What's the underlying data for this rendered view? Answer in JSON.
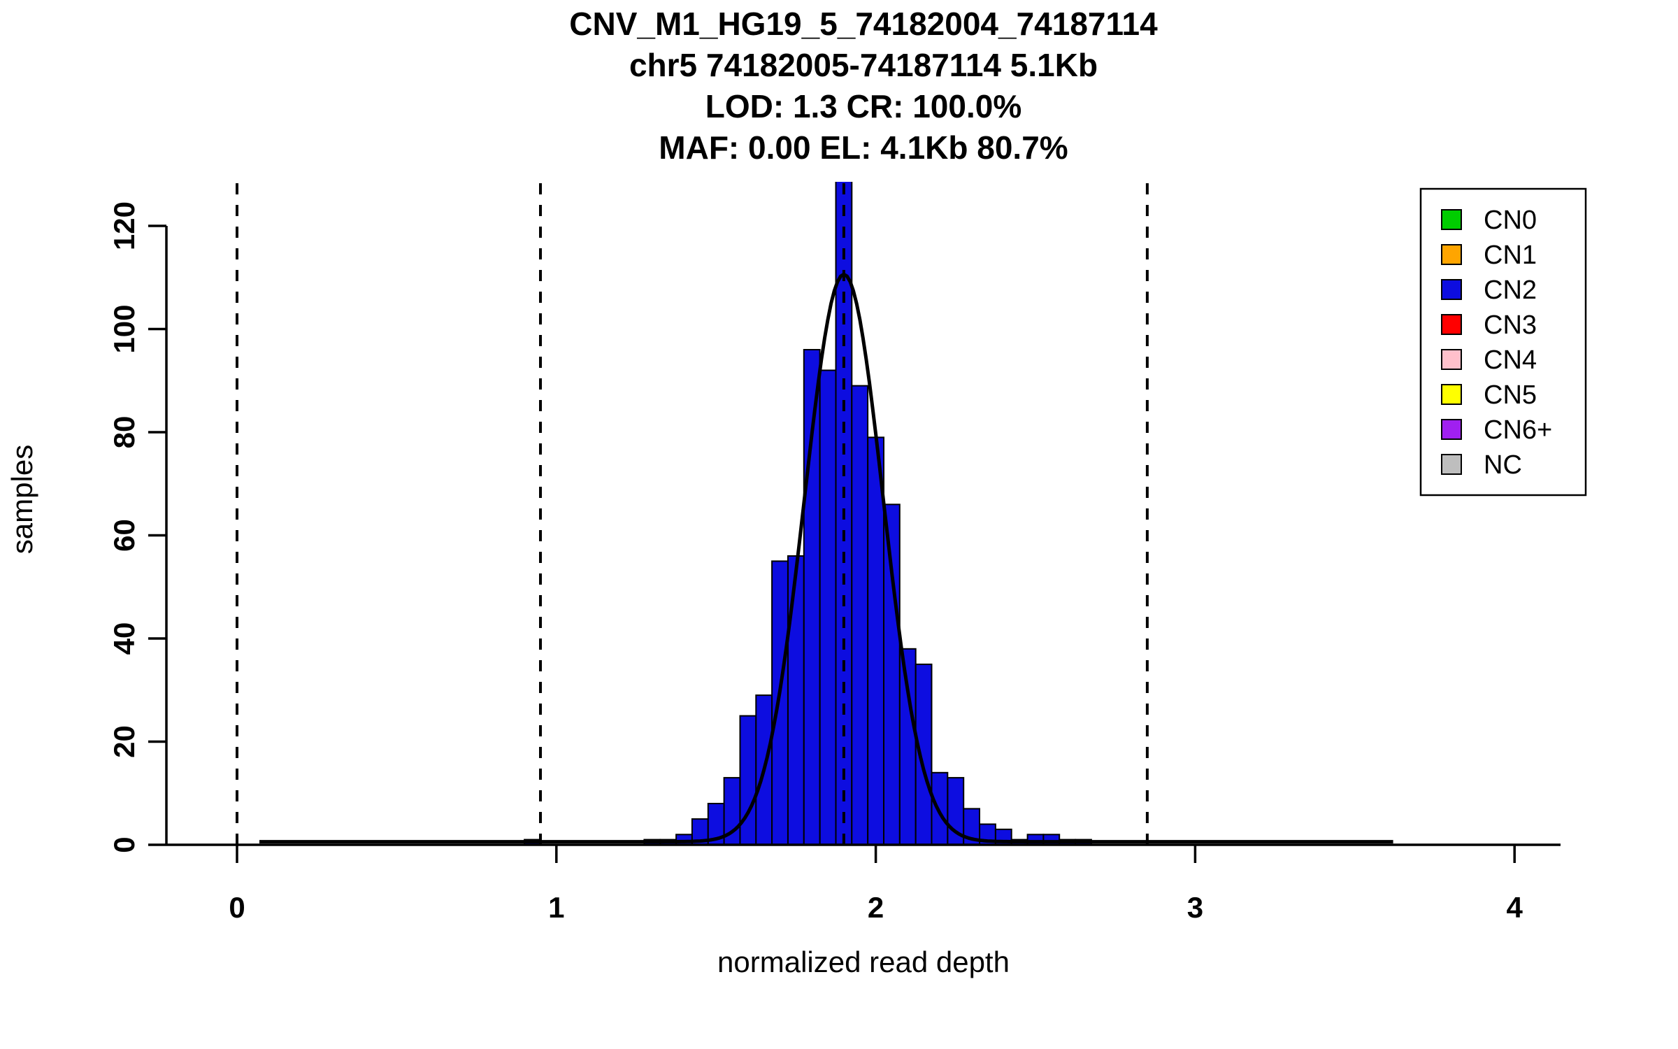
{
  "figure": {
    "background": "#FFFFFF"
  },
  "chart_data": {
    "type": "bar",
    "chart_kind": "histogram-with-density-curve",
    "title_lines": [
      "CNV_M1_HG19_5_74182004_74187114",
      "chr5 74182005-74187114 5.1Kb",
      "LOD: 1.3 CR: 100.0%",
      "MAF: 0.00 EL: 4.1Kb 80.7%"
    ],
    "xlabel": "normalized read depth",
    "ylabel": "samples",
    "x_ticks": [
      0,
      1,
      2,
      3,
      4
    ],
    "y_ticks": [
      0,
      20,
      40,
      60,
      80,
      100,
      120
    ],
    "xlim": [
      -0.22,
      4.15
    ],
    "ylim": [
      0,
      128.5
    ],
    "grid": false,
    "legend_position": "top-right",
    "bin_width": 0.05,
    "bar_fill": "#0D0DE0",
    "bar_stroke": "#000000",
    "peak_bar_clipped_at_top": true,
    "bars": [
      {
        "center": 0.925,
        "count": 1
      },
      {
        "center": 1.3,
        "count": 1
      },
      {
        "center": 1.35,
        "count": 1
      },
      {
        "center": 1.4,
        "count": 2
      },
      {
        "center": 1.45,
        "count": 5
      },
      {
        "center": 1.5,
        "count": 8
      },
      {
        "center": 1.55,
        "count": 13
      },
      {
        "center": 1.6,
        "count": 25
      },
      {
        "center": 1.65,
        "count": 29
      },
      {
        "center": 1.7,
        "count": 55
      },
      {
        "center": 1.75,
        "count": 56
      },
      {
        "center": 1.8,
        "count": 96
      },
      {
        "center": 1.85,
        "count": 92
      },
      {
        "center": 1.9,
        "count": 131
      },
      {
        "center": 1.95,
        "count": 89
      },
      {
        "center": 2.0,
        "count": 79
      },
      {
        "center": 2.05,
        "count": 66
      },
      {
        "center": 2.1,
        "count": 38
      },
      {
        "center": 2.15,
        "count": 35
      },
      {
        "center": 2.2,
        "count": 14
      },
      {
        "center": 2.25,
        "count": 13
      },
      {
        "center": 2.3,
        "count": 7
      },
      {
        "center": 2.35,
        "count": 4
      },
      {
        "center": 2.4,
        "count": 3
      },
      {
        "center": 2.45,
        "count": 1
      },
      {
        "center": 2.5,
        "count": 2
      },
      {
        "center": 2.55,
        "count": 2
      },
      {
        "center": 2.6,
        "count": 1
      },
      {
        "center": 2.65,
        "count": 1
      }
    ],
    "density_curve": {
      "shape": "gaussian",
      "mean": 1.9,
      "sd": 0.123,
      "peak": 110,
      "baseline": 0.6,
      "x_start": 0.07,
      "x_end": 3.62,
      "color": "#000000"
    },
    "dashed_guides_x": [
      0,
      0.95,
      1.9,
      2.85
    ],
    "legend": {
      "items": [
        {
          "label": "CN0",
          "color": "#00CD00"
        },
        {
          "label": "CN1",
          "color": "#FFA500"
        },
        {
          "label": "CN2",
          "color": "#0D0DE0"
        },
        {
          "label": "CN3",
          "color": "#FF0000"
        },
        {
          "label": "CN4",
          "color": "#FFC0CB"
        },
        {
          "label": "CN5",
          "color": "#FFFF00"
        },
        {
          "label": "CN6+",
          "color": "#A020F0"
        },
        {
          "label": "NC",
          "color": "#BEBEBE"
        }
      ]
    }
  }
}
